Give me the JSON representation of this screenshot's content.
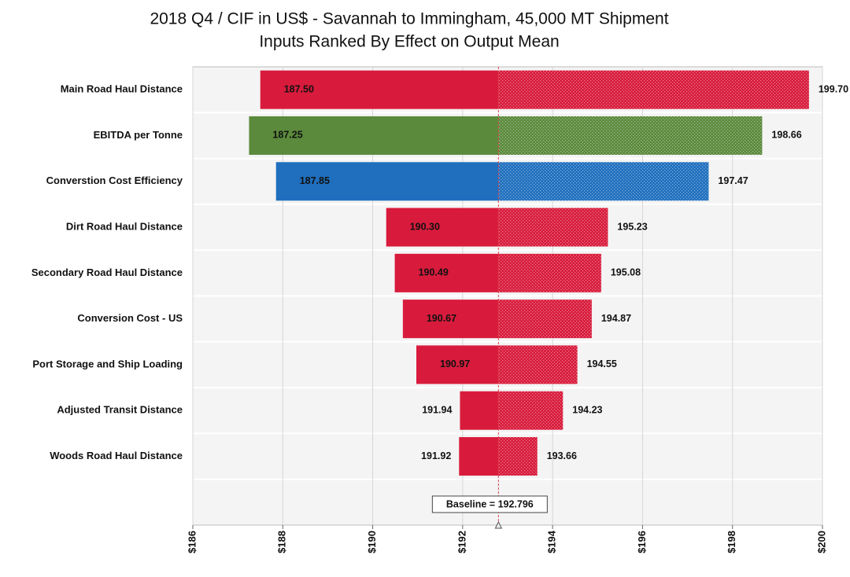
{
  "chart_data": {
    "type": "tornado",
    "title": "2018 Q4 / CIF in US$ - Savannah to Immingham, 45,000 MT Shipment",
    "subtitle": "Inputs Ranked By Effect on Output Mean",
    "categories": [
      "Main Road Haul Distance",
      "EBITDA per Tonne",
      "Converstion Cost Efficiency",
      "Dirt Road Haul Distance",
      "Secondary Road Haul Distance",
      "Conversion Cost - US",
      "Port Storage and Ship Loading",
      "Adjusted Transit Distance",
      "Woods Road Haul Distance"
    ],
    "low_values": [
      187.5,
      187.25,
      187.85,
      190.3,
      190.49,
      190.67,
      190.97,
      191.94,
      191.92
    ],
    "low_value_labels": [
      "187.50",
      "187.25",
      "187.85",
      "190.30",
      "190.49",
      "190.67",
      "190.97",
      "191.94",
      "191.92"
    ],
    "high_values": [
      199.7,
      198.66,
      197.47,
      195.23,
      195.08,
      194.87,
      194.55,
      194.23,
      193.66
    ],
    "high_value_labels": [
      "199.70",
      "198.66",
      "197.47",
      "195.23",
      "195.08",
      "194.87",
      "194.55",
      "194.23",
      "193.66"
    ],
    "colors": [
      "#d81b3c",
      "#5b8a3c",
      "#1f6fbe",
      "#d81b3c",
      "#d81b3c",
      "#d81b3c",
      "#d81b3c",
      "#d81b3c",
      "#d81b3c"
    ],
    "baseline": 192.796,
    "baseline_label": "Baseline = 192.796",
    "xlim": [
      186,
      200
    ],
    "xticks": [
      {
        "value": 186,
        "label": "$186"
      },
      {
        "value": 188,
        "label": "$188"
      },
      {
        "value": 190,
        "label": "$190"
      },
      {
        "value": 192,
        "label": "$192"
      },
      {
        "value": 194,
        "label": "$194"
      },
      {
        "value": 196,
        "label": "$196"
      },
      {
        "value": 198,
        "label": "$198"
      },
      {
        "value": 200,
        "label": "$200"
      }
    ],
    "grid": true
  }
}
